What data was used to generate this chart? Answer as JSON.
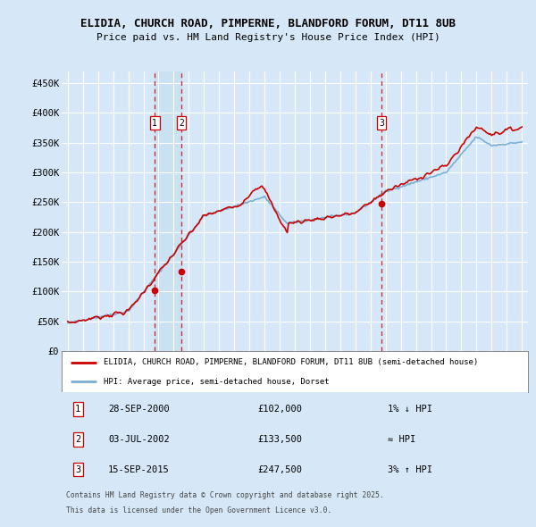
{
  "title_line1": "ELIDIA, CHURCH ROAD, PIMPERNE, BLANDFORD FORUM, DT11 8UB",
  "title_line2": "Price paid vs. HM Land Registry's House Price Index (HPI)",
  "ylim": [
    0,
    470000
  ],
  "yticks": [
    0,
    50000,
    100000,
    150000,
    200000,
    250000,
    300000,
    350000,
    400000,
    450000
  ],
  "ytick_labels": [
    "£0",
    "£50K",
    "£100K",
    "£150K",
    "£200K",
    "£250K",
    "£300K",
    "£350K",
    "£400K",
    "£450K"
  ],
  "xlim_start": 1994.6,
  "xlim_end": 2025.4,
  "bg_color": "#d6e8f7",
  "grid_color": "#ffffff",
  "sale_dates": [
    2000.75,
    2002.5,
    2015.72
  ],
  "sale_prices": [
    102000,
    133500,
    247500
  ],
  "sale_labels": [
    "1",
    "2",
    "3"
  ],
  "sale_date_strs": [
    "28-SEP-2000",
    "03-JUL-2002",
    "15-SEP-2015"
  ],
  "sale_price_strs": [
    "£102,000",
    "£133,500",
    "£247,500"
  ],
  "sale_hpi_strs": [
    "1% ↓ HPI",
    "≈ HPI",
    "3% ↑ HPI"
  ],
  "legend_label_red": "ELIDIA, CHURCH ROAD, PIMPERNE, BLANDFORD FORUM, DT11 8UB (semi-detached house)",
  "legend_label_blue": "HPI: Average price, semi-detached house, Dorset",
  "footnote_line1": "Contains HM Land Registry data © Crown copyright and database right 2025.",
  "footnote_line2": "This data is licensed under the Open Government Licence v3.0.",
  "red_color": "#cc0000",
  "blue_color": "#7aafd4",
  "span_color": "#c5dff0"
}
